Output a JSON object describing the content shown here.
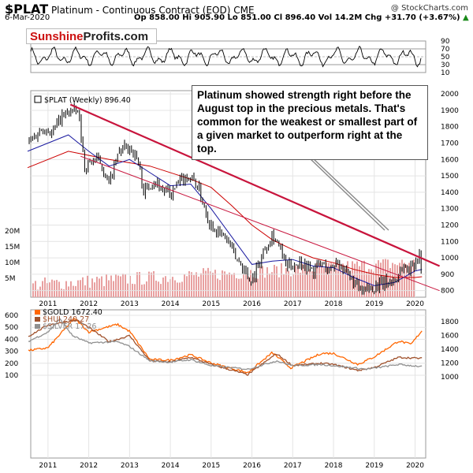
{
  "header": {
    "symbol": "$PLAT",
    "subtitle": "Platinum - Continuous Contract (EOD)",
    "exchange": "CME",
    "date": "6-Mar-2020",
    "ohlc": "Op 858.00  Hi 905.90  Lo 851.00  Cl 896.40  Vol 14.2M  Chg +31.70 (+3.67%)",
    "ohlc_arrow": "▲",
    "credit": "@ StockCharts.com"
  },
  "brand": {
    "part1": "Sunshine",
    "part2": "Profits.com"
  },
  "annotation": "Platinum showed strength right before the August top in the precious metals. That's common for the weakest or smallest part of a given market to outperform right at the top.",
  "colors": {
    "price": "#000000",
    "ma_short": "#1a1aa0",
    "ma_long": "#cc0000",
    "trendline": "#c8143c",
    "volume": "#e8a0a0",
    "gold": "#ff6600",
    "hui": "#a0522d",
    "silver": "#909090",
    "annotation_pointer": "#888888"
  },
  "chart_data": [
    {
      "type": "line",
      "panel": "rsi",
      "y_ticks": [
        10,
        30,
        50,
        70,
        90
      ],
      "reference_levels": [
        30,
        50,
        70
      ],
      "ylim": [
        10,
        90
      ]
    },
    {
      "type": "candlestick",
      "panel": "price",
      "legend": "$PLAT (Weekly) 896.40",
      "x_tick_labels": [
        "2011",
        "2012",
        "2013",
        "2014",
        "2015",
        "2016",
        "2017",
        "2018",
        "2019",
        "2020"
      ],
      "y_ticks": [
        800,
        900,
        1000,
        1100,
        1200,
        1300,
        1400,
        1500,
        1600,
        1700,
        1800,
        1900,
        2000
      ],
      "ylim": [
        760,
        2020
      ],
      "price_path": [
        [
          2010.5,
          1700
        ],
        [
          2010.9,
          1800
        ],
        [
          2011.1,
          1760
        ],
        [
          2011.3,
          1850
        ],
        [
          2011.55,
          1900
        ],
        [
          2011.75,
          1880
        ],
        [
          2011.9,
          1550
        ],
        [
          2012.1,
          1600
        ],
        [
          2012.3,
          1580
        ],
        [
          2012.5,
          1450
        ],
        [
          2012.75,
          1650
        ],
        [
          2013.0,
          1680
        ],
        [
          2013.2,
          1600
        ],
        [
          2013.35,
          1400
        ],
        [
          2013.6,
          1480
        ],
        [
          2013.8,
          1420
        ],
        [
          2014.0,
          1380
        ],
        [
          2014.2,
          1450
        ],
        [
          2014.4,
          1500
        ],
        [
          2014.55,
          1480
        ],
        [
          2014.7,
          1420
        ],
        [
          2014.95,
          1220
        ],
        [
          2015.2,
          1150
        ],
        [
          2015.4,
          1110
        ],
        [
          2015.6,
          1000
        ],
        [
          2015.75,
          960
        ],
        [
          2015.95,
          860
        ],
        [
          2016.1,
          920
        ],
        [
          2016.3,
          1050
        ],
        [
          2016.5,
          1150
        ],
        [
          2016.65,
          1080
        ],
        [
          2016.85,
          940
        ],
        [
          2017.0,
          960
        ],
        [
          2017.2,
          980
        ],
        [
          2017.5,
          920
        ],
        [
          2017.7,
          970
        ],
        [
          2017.9,
          920
        ],
        [
          2018.1,
          990
        ],
        [
          2018.3,
          900
        ],
        [
          2018.5,
          850
        ],
        [
          2018.7,
          780
        ],
        [
          2018.9,
          820
        ],
        [
          2019.1,
          830
        ],
        [
          2019.3,
          850
        ],
        [
          2019.5,
          860
        ],
        [
          2019.7,
          950
        ],
        [
          2019.85,
          930
        ],
        [
          2020.0,
          980
        ],
        [
          2020.1,
          1020
        ],
        [
          2020.17,
          896
        ]
      ],
      "ma_short": [
        [
          2010.5,
          1650
        ],
        [
          2011.5,
          1750
        ],
        [
          2012.0,
          1650
        ],
        [
          2012.5,
          1560
        ],
        [
          2013.0,
          1600
        ],
        [
          2013.5,
          1520
        ],
        [
          2014.0,
          1440
        ],
        [
          2014.5,
          1450
        ],
        [
          2015.0,
          1300
        ],
        [
          2015.5,
          1130
        ],
        [
          2016.0,
          960
        ],
        [
          2016.5,
          980
        ],
        [
          2017.0,
          990
        ],
        [
          2017.5,
          950
        ],
        [
          2018.0,
          940
        ],
        [
          2018.5,
          880
        ],
        [
          2019.0,
          830
        ],
        [
          2019.5,
          850
        ],
        [
          2020.0,
          920
        ],
        [
          2020.17,
          930
        ]
      ],
      "ma_long": [
        [
          2010.5,
          1550
        ],
        [
          2011.5,
          1650
        ],
        [
          2012.5,
          1600
        ],
        [
          2013.5,
          1560
        ],
        [
          2014.5,
          1480
        ],
        [
          2015.0,
          1430
        ],
        [
          2015.5,
          1320
        ],
        [
          2016.0,
          1200
        ],
        [
          2016.5,
          1110
        ],
        [
          2017.0,
          1050
        ],
        [
          2017.5,
          1000
        ],
        [
          2018.0,
          970
        ],
        [
          2018.5,
          930
        ],
        [
          2019.0,
          900
        ],
        [
          2019.5,
          880
        ],
        [
          2020.0,
          880
        ],
        [
          2020.17,
          885
        ]
      ],
      "trendline_1": [
        [
          2011.55,
          1935
        ],
        [
          2020.6,
          950
        ]
      ],
      "trendline_2": [
        [
          2011.8,
          1620
        ],
        [
          2020.6,
          800
        ]
      ],
      "volume_axis_labels": [
        "5M",
        "10M",
        "15M",
        "20M"
      ]
    },
    {
      "type": "line",
      "panel": "comparison",
      "x_tick_labels": [
        "2011",
        "2012",
        "2013",
        "2014",
        "2015",
        "2016",
        "2017",
        "2018",
        "2019",
        "2020"
      ],
      "left_y_ticks": [
        100,
        200,
        300,
        400,
        500,
        600
      ],
      "right_y_ticks": [
        1000,
        1200,
        1400,
        1600,
        1800
      ],
      "series": [
        {
          "name": "$GOLD 1672.40",
          "axis": "right",
          "values": [
            [
              2010.5,
              1380
            ],
            [
              2011.0,
              1420
            ],
            [
              2011.65,
              1850
            ],
            [
              2012.0,
              1650
            ],
            [
              2012.7,
              1760
            ],
            [
              2013.0,
              1660
            ],
            [
              2013.5,
              1250
            ],
            [
              2014.0,
              1240
            ],
            [
              2014.5,
              1320
            ],
            [
              2015.0,
              1200
            ],
            [
              2015.9,
              1060
            ],
            [
              2016.5,
              1350
            ],
            [
              2016.95,
              1130
            ],
            [
              2017.7,
              1340
            ],
            [
              2018.0,
              1340
            ],
            [
              2018.6,
              1180
            ],
            [
              2019.0,
              1290
            ],
            [
              2019.6,
              1520
            ],
            [
              2019.9,
              1470
            ],
            [
              2020.17,
              1672
            ]
          ]
        },
        {
          "name": "$HUI 240.27",
          "axis": "left",
          "values": [
            [
              2010.5,
              420
            ],
            [
              2011.0,
              520
            ],
            [
              2011.7,
              560
            ],
            [
              2012.0,
              500
            ],
            [
              2012.5,
              380
            ],
            [
              2013.0,
              430
            ],
            [
              2013.5,
              220
            ],
            [
              2014.0,
              210
            ],
            [
              2014.5,
              250
            ],
            [
              2015.0,
              190
            ],
            [
              2015.9,
              105
            ],
            [
              2016.6,
              280
            ],
            [
              2017.0,
              180
            ],
            [
              2017.7,
              200
            ],
            [
              2018.0,
              190
            ],
            [
              2018.6,
              140
            ],
            [
              2019.0,
              165
            ],
            [
              2019.6,
              250
            ],
            [
              2020.17,
              240
            ]
          ]
        },
        {
          "name": "$SILVER 17.26",
          "axis": "left",
          "values": [
            [
              2010.5,
              380
            ],
            [
              2011.0,
              460
            ],
            [
              2011.3,
              570
            ],
            [
              2011.6,
              430
            ],
            [
              2012.0,
              370
            ],
            [
              2012.7,
              380
            ],
            [
              2013.0,
              340
            ],
            [
              2013.5,
              220
            ],
            [
              2014.0,
              210
            ],
            [
              2014.5,
              230
            ],
            [
              2015.0,
              180
            ],
            [
              2015.9,
              150
            ],
            [
              2016.6,
              220
            ],
            [
              2017.0,
              180
            ],
            [
              2017.7,
              190
            ],
            [
              2018.0,
              180
            ],
            [
              2018.8,
              150
            ],
            [
              2019.0,
              160
            ],
            [
              2019.6,
              190
            ],
            [
              2020.17,
              172
            ]
          ]
        }
      ]
    }
  ]
}
